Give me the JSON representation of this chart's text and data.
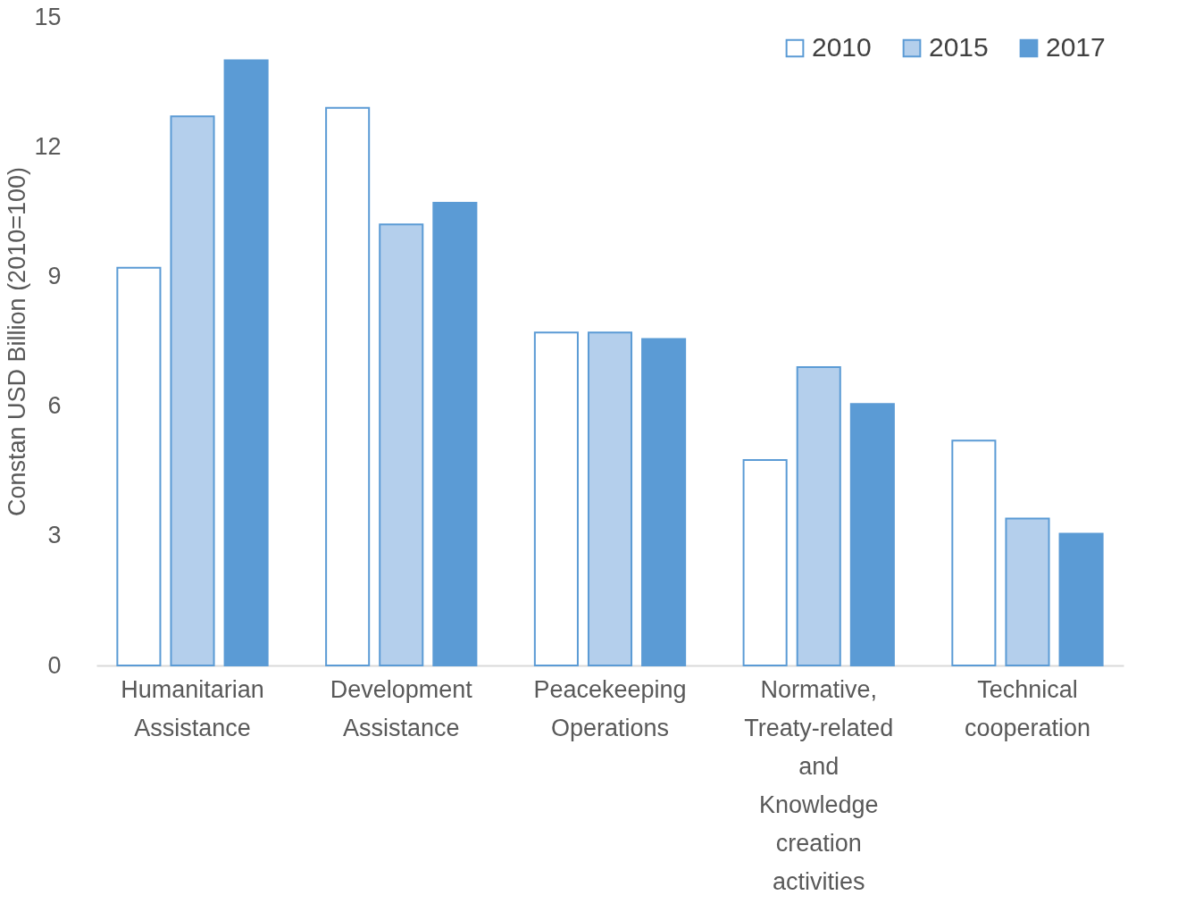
{
  "chart_data": {
    "type": "bar",
    "ylabel": "Constan USD Billion (2010=100)",
    "categories": [
      "Humanitarian Assistance",
      "Development Assistance",
      "Peacekeeping Operations",
      "Normative, Treaty-related and Knowledge creation activities",
      "Technical cooperation"
    ],
    "series": [
      {
        "name": "2010",
        "color": "#ffffff",
        "values": [
          9.2,
          12.9,
          7.7,
          4.75,
          5.2
        ]
      },
      {
        "name": "2015",
        "color": "#b4cfec",
        "values": [
          12.7,
          10.2,
          7.7,
          6.9,
          3.4
        ]
      },
      {
        "name": "2017",
        "color": "#5b9bd5",
        "values": [
          14.0,
          10.7,
          7.55,
          6.05,
          3.05
        ]
      }
    ],
    "ylim": [
      0,
      15
    ],
    "yticks": [
      0,
      3,
      6,
      9,
      12,
      15
    ],
    "grid": false,
    "legend": "top right"
  }
}
